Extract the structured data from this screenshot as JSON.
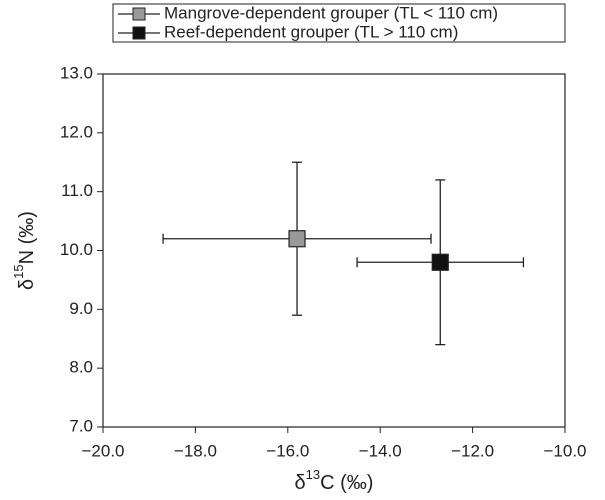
{
  "chart_data": {
    "type": "scatter",
    "xlabel": {
      "symbol": "δ",
      "sup": "13",
      "rest": "C  (‰)"
    },
    "ylabel": {
      "symbol": "δ",
      "sup": "15",
      "rest": "N (‰)"
    },
    "xlim": [
      -20,
      -10
    ],
    "ylim": [
      7,
      13
    ],
    "xticks": [
      {
        "value": -20,
        "label": "−20.0"
      },
      {
        "value": -18,
        "label": "−18.0"
      },
      {
        "value": -16,
        "label": "−16.0"
      },
      {
        "value": -14,
        "label": "−14.0"
      },
      {
        "value": -12,
        "label": "−12.0"
      },
      {
        "value": -10,
        "label": "−10.0"
      }
    ],
    "yticks": [
      {
        "value": 7,
        "label": "7.0"
      },
      {
        "value": 8,
        "label": "8.0"
      },
      {
        "value": 9,
        "label": "9.0"
      },
      {
        "value": 10,
        "label": "10.0"
      },
      {
        "value": 11,
        "label": "11.0"
      },
      {
        "value": 12,
        "label": "12.0"
      },
      {
        "value": 13,
        "label": "13.0"
      }
    ],
    "legend": "top",
    "series": [
      {
        "name": "Mangrove-dependent grouper (TL < 110 cm)",
        "color": "#999999",
        "x": [
          -15.8
        ],
        "values": [
          10.2
        ],
        "xerr": [
          2.9
        ],
        "yerr": [
          1.3
        ]
      },
      {
        "name": "Reef-dependent grouper (TL > 110 cm)",
        "color": "#111111",
        "x": [
          -12.7
        ],
        "values": [
          9.8
        ],
        "xerr": [
          1.8
        ],
        "yerr": [
          1.4
        ]
      }
    ]
  }
}
